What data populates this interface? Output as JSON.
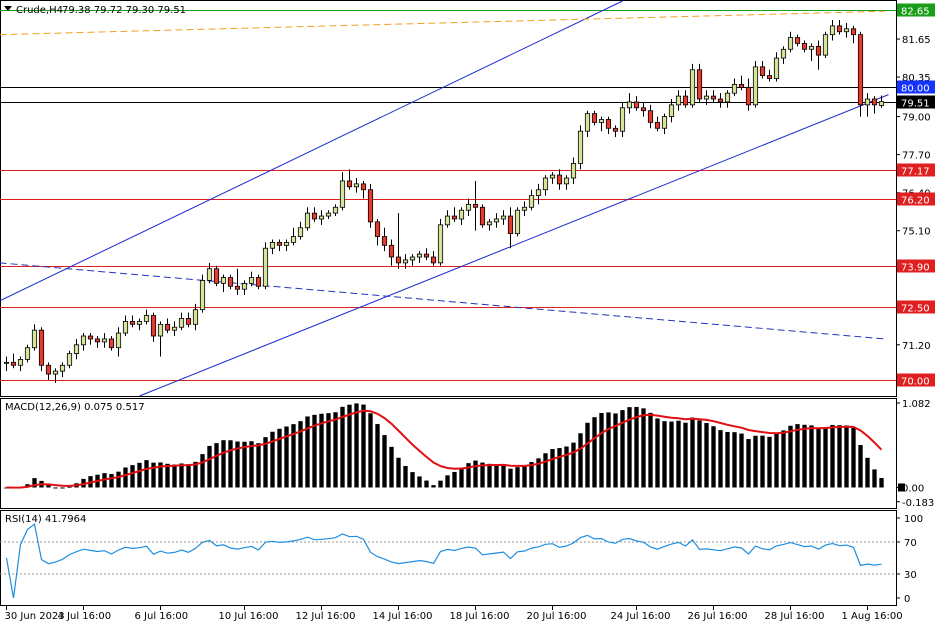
{
  "header": {
    "symbol_label": "Crude,H4",
    "ohlc": "79.38 79.72 79.30 79.51"
  },
  "price_axis": {
    "ticks": [
      "81.65",
      "80.35",
      "79.00",
      "77.70",
      "76.40",
      "75.10",
      "71.20"
    ],
    "ylim": [
      69.45,
      82.95
    ]
  },
  "levels": [
    {
      "value": 82.65,
      "label": "82.65",
      "color": "#1a9e1a",
      "tag_bg": "#1a9e1a",
      "tag_fg": "#ffffff"
    },
    {
      "value": 80.0,
      "label": "80.00",
      "color": "#000000",
      "tag_bg": "#1433ff",
      "tag_fg": "#ffffff"
    },
    {
      "value": 79.51,
      "label": "79.51",
      "color": "#000000",
      "tag_bg": "#000000",
      "tag_fg": "#ffffff"
    },
    {
      "value": 77.17,
      "label": "77.17",
      "color": "#e02020",
      "tag_bg": "#e02020",
      "tag_fg": "#ffffff"
    },
    {
      "value": 76.2,
      "label": "76.20",
      "color": "#e02020",
      "tag_bg": "#e02020",
      "tag_fg": "#ffffff"
    },
    {
      "value": 73.9,
      "label": "73.90",
      "color": "#e02020",
      "tag_bg": "#e02020",
      "tag_fg": "#ffffff"
    },
    {
      "value": 72.5,
      "label": "72.50",
      "color": "#e02020",
      "tag_bg": "#e02020",
      "tag_fg": "#ffffff"
    },
    {
      "value": 70.0,
      "label": "70.00",
      "color": "#e02020",
      "tag_bg": "#e02020",
      "tag_fg": "#ffffff"
    }
  ],
  "macd": {
    "label": "MACD(12,26,9) 0.075 0.517",
    "ticks": [
      "1.082",
      "0.00",
      "-0.183"
    ],
    "ylim": [
      -0.25,
      1.12
    ]
  },
  "rsi": {
    "label": "RSI(14) 41.7964",
    "ticks": [
      "100",
      "70",
      "30",
      "0"
    ],
    "levels": [
      70,
      30
    ],
    "ylim": [
      0,
      100
    ]
  },
  "time_axis": {
    "labels": [
      "30 Jun 2023",
      "4 Jul 16:00",
      "6 Jul 16:00",
      "10 Jul 16:00",
      "12 Jul 16:00",
      "14 Jul 16:00",
      "18 Jul 16:00",
      "20 Jul 16:00",
      "24 Jul 16:00",
      "26 Jul 16:00",
      "28 Jul 16:00",
      "1 Aug 16:00"
    ]
  },
  "colors": {
    "bull_body": "#d6e49a",
    "bear_body": "#e63b2e",
    "candle_outline": "#000000",
    "channel": "#1a2ad0",
    "trend_dashed": "#2233bb",
    "resistance_dashed": "#f0a020",
    "macd_hist": "#000000",
    "macd_signal": "#e01010",
    "rsi_line": "#1f8fe0"
  },
  "chart_data": [
    {
      "type": "candlestick",
      "title": "Crude,H4",
      "x": [
        "30 Jun 2023",
        "4 Jul 16:00",
        "6 Jul 16:00",
        "10 Jul 16:00",
        "12 Jul 16:00",
        "14 Jul 16:00",
        "18 Jul 16:00",
        "20 Jul 16:00",
        "24 Jul 16:00",
        "26 Jul 16:00",
        "28 Jul 16:00",
        "1 Aug 16:00"
      ],
      "ylim": [
        69.45,
        82.95
      ],
      "candles_ohlc": [
        [
          70.6,
          70.8,
          70.3,
          70.6
        ],
        [
          70.6,
          70.9,
          70.4,
          70.5
        ],
        [
          70.5,
          70.8,
          70.3,
          70.7
        ],
        [
          70.7,
          71.2,
          70.6,
          71.1
        ],
        [
          71.1,
          71.9,
          71.0,
          71.7
        ],
        [
          71.7,
          71.8,
          70.3,
          70.5
        ],
        [
          70.5,
          70.6,
          70.0,
          70.2
        ],
        [
          70.2,
          70.4,
          69.9,
          70.3
        ],
        [
          70.3,
          70.6,
          70.1,
          70.5
        ],
        [
          70.5,
          71.0,
          70.4,
          70.9
        ],
        [
          70.9,
          71.4,
          70.7,
          71.2
        ],
        [
          71.2,
          71.6,
          71.0,
          71.5
        ],
        [
          71.5,
          71.6,
          71.2,
          71.4
        ],
        [
          71.4,
          71.5,
          71.1,
          71.3
        ],
        [
          71.3,
          71.6,
          71.1,
          71.4
        ],
        [
          71.4,
          71.5,
          71.0,
          71.1
        ],
        [
          71.1,
          71.8,
          70.8,
          71.6
        ],
        [
          71.6,
          72.2,
          71.5,
          72.0
        ],
        [
          72.0,
          72.2,
          71.8,
          71.9
        ],
        [
          71.9,
          72.1,
          71.7,
          72.0
        ],
        [
          72.0,
          72.4,
          71.9,
          72.2
        ],
        [
          72.2,
          72.3,
          71.3,
          71.5
        ],
        [
          71.5,
          72.0,
          70.8,
          71.9
        ],
        [
          71.9,
          72.1,
          71.6,
          71.7
        ],
        [
          71.7,
          72.0,
          71.5,
          71.8
        ],
        [
          71.8,
          72.3,
          71.7,
          72.1
        ],
        [
          72.1,
          72.3,
          71.8,
          71.9
        ],
        [
          71.9,
          72.6,
          71.7,
          72.4
        ],
        [
          72.4,
          73.6,
          72.3,
          73.4
        ],
        [
          73.4,
          74.0,
          73.3,
          73.8
        ],
        [
          73.8,
          73.9,
          73.2,
          73.3
        ],
        [
          73.3,
          73.6,
          73.0,
          73.5
        ],
        [
          73.5,
          73.6,
          73.1,
          73.2
        ],
        [
          73.2,
          73.8,
          72.9,
          73.1
        ],
        [
          73.1,
          73.4,
          72.9,
          73.3
        ],
        [
          73.3,
          73.7,
          73.2,
          73.5
        ],
        [
          73.5,
          73.6,
          73.1,
          73.2
        ],
        [
          73.2,
          74.7,
          73.1,
          74.5
        ],
        [
          74.5,
          74.8,
          74.3,
          74.7
        ],
        [
          74.7,
          74.8,
          74.4,
          74.6
        ],
        [
          74.6,
          74.8,
          74.4,
          74.7
        ],
        [
          74.7,
          75.2,
          74.6,
          74.9
        ],
        [
          74.9,
          75.4,
          74.8,
          75.2
        ],
        [
          75.2,
          75.9,
          75.1,
          75.7
        ],
        [
          75.7,
          75.9,
          75.4,
          75.5
        ],
        [
          75.5,
          75.8,
          75.3,
          75.6
        ],
        [
          75.6,
          75.8,
          75.5,
          75.7
        ],
        [
          75.7,
          76.0,
          75.6,
          75.9
        ],
        [
          75.9,
          77.1,
          75.8,
          76.8
        ],
        [
          76.8,
          77.2,
          76.5,
          76.6
        ],
        [
          76.6,
          76.9,
          76.4,
          76.7
        ],
        [
          76.7,
          76.8,
          76.2,
          76.5
        ],
        [
          76.5,
          76.7,
          75.2,
          75.4
        ],
        [
          75.4,
          75.5,
          74.6,
          74.9
        ],
        [
          74.9,
          75.2,
          74.4,
          74.6
        ],
        [
          74.6,
          74.8,
          73.9,
          74.2
        ],
        [
          74.2,
          75.7,
          73.8,
          74.0
        ],
        [
          74.0,
          74.3,
          73.8,
          74.1
        ],
        [
          74.1,
          74.3,
          73.9,
          74.2
        ],
        [
          74.2,
          74.4,
          74.0,
          74.3
        ],
        [
          74.3,
          74.5,
          74.1,
          74.2
        ],
        [
          74.2,
          74.4,
          73.9,
          74.0
        ],
        [
          74.0,
          75.5,
          73.9,
          75.3
        ],
        [
          75.3,
          75.8,
          75.2,
          75.6
        ],
        [
          75.6,
          75.9,
          75.4,
          75.5
        ],
        [
          75.5,
          75.9,
          75.3,
          75.8
        ],
        [
          75.8,
          76.2,
          75.6,
          76.0
        ],
        [
          76.0,
          76.8,
          75.1,
          75.9
        ],
        [
          75.9,
          76.0,
          75.2,
          75.3
        ],
        [
          75.3,
          75.5,
          75.1,
          75.4
        ],
        [
          75.4,
          75.7,
          75.2,
          75.5
        ],
        [
          75.5,
          75.8,
          75.3,
          75.6
        ],
        [
          75.6,
          75.9,
          74.5,
          75.0
        ],
        [
          75.0,
          75.9,
          74.9,
          75.8
        ],
        [
          75.8,
          76.1,
          75.6,
          75.9
        ],
        [
          75.9,
          76.5,
          75.8,
          76.3
        ],
        [
          76.3,
          76.7,
          76.0,
          76.5
        ],
        [
          76.5,
          77.0,
          76.3,
          76.9
        ],
        [
          76.9,
          77.1,
          76.7,
          77.0
        ],
        [
          77.0,
          77.2,
          76.5,
          76.7
        ],
        [
          76.7,
          77.0,
          76.5,
          76.9
        ],
        [
          76.9,
          77.6,
          76.7,
          77.4
        ],
        [
          77.4,
          78.7,
          77.2,
          78.5
        ],
        [
          78.5,
          79.2,
          78.3,
          79.1
        ],
        [
          79.1,
          79.2,
          78.7,
          78.8
        ],
        [
          78.8,
          79.0,
          78.5,
          78.9
        ],
        [
          78.9,
          79.0,
          78.4,
          78.6
        ],
        [
          78.6,
          78.7,
          78.3,
          78.5
        ],
        [
          78.5,
          79.5,
          78.3,
          79.3
        ],
        [
          79.3,
          79.8,
          79.1,
          79.5
        ],
        [
          79.5,
          79.7,
          79.2,
          79.3
        ],
        [
          79.3,
          79.5,
          79.0,
          79.2
        ],
        [
          79.2,
          79.4,
          78.6,
          78.8
        ],
        [
          78.8,
          79.0,
          78.5,
          78.6
        ],
        [
          78.6,
          79.1,
          78.4,
          79.0
        ],
        [
          79.0,
          79.6,
          78.8,
          79.4
        ],
        [
          79.4,
          79.9,
          79.2,
          79.7
        ],
        [
          79.7,
          79.9,
          79.3,
          79.4
        ],
        [
          79.4,
          80.8,
          79.3,
          80.6
        ],
        [
          80.6,
          80.8,
          79.5,
          79.6
        ],
        [
          79.6,
          79.9,
          79.4,
          79.7
        ],
        [
          79.7,
          79.9,
          79.5,
          79.6
        ],
        [
          79.6,
          79.8,
          79.3,
          79.5
        ],
        [
          79.5,
          79.9,
          79.3,
          79.8
        ],
        [
          79.8,
          80.3,
          79.7,
          80.1
        ],
        [
          80.1,
          80.4,
          79.9,
          80.0
        ],
        [
          80.0,
          80.3,
          79.2,
          79.4
        ],
        [
          79.4,
          80.9,
          79.3,
          80.7
        ],
        [
          80.7,
          80.9,
          80.3,
          80.4
        ],
        [
          80.4,
          80.6,
          80.2,
          80.3
        ],
        [
          80.3,
          81.2,
          80.2,
          81.0
        ],
        [
          81.0,
          81.4,
          80.8,
          81.3
        ],
        [
          81.3,
          81.9,
          81.2,
          81.7
        ],
        [
          81.7,
          81.8,
          81.4,
          81.5
        ],
        [
          81.5,
          81.6,
          81.2,
          81.3
        ],
        [
          81.3,
          81.5,
          80.9,
          81.4
        ],
        [
          81.4,
          81.6,
          80.6,
          81.1
        ],
        [
          81.1,
          81.9,
          81.0,
          81.8
        ],
        [
          81.8,
          82.3,
          81.6,
          82.1
        ],
        [
          82.1,
          82.3,
          81.8,
          81.9
        ],
        [
          81.9,
          82.2,
          81.7,
          82.0
        ],
        [
          82.0,
          82.1,
          81.5,
          81.8
        ],
        [
          81.8,
          81.9,
          79.0,
          79.4
        ],
        [
          79.4,
          79.8,
          79.0,
          79.6
        ],
        [
          79.6,
          79.7,
          79.1,
          79.4
        ],
        [
          79.38,
          79.72,
          79.3,
          79.51
        ]
      ]
    }
  ]
}
